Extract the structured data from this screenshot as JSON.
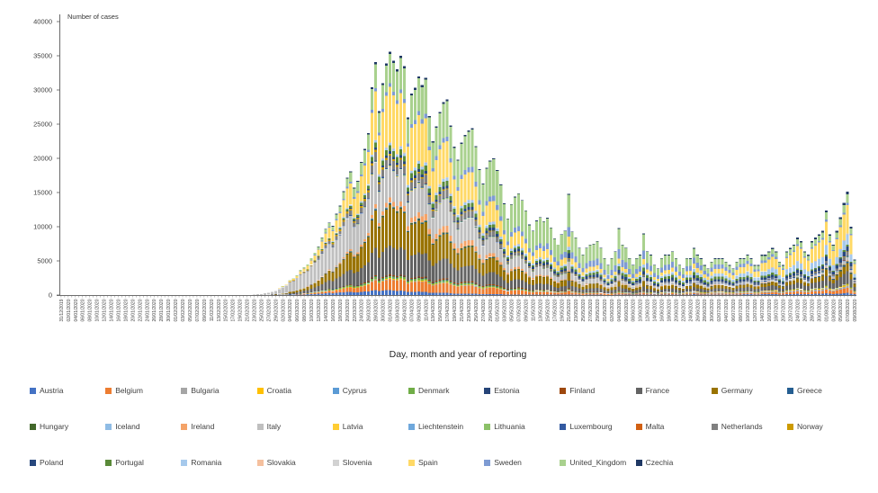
{
  "chart_data": {
    "type": "bar",
    "stacked": true,
    "title": "",
    "ylabel": "Number of cases",
    "xlabel": "Day, month and year of reporting",
    "ylim": [
      0,
      40000
    ],
    "y_ticks": [
      0,
      5000,
      10000,
      15000,
      20000,
      25000,
      30000,
      35000,
      40000
    ],
    "x_tick_label_every": 2,
    "grid": false,
    "legend_position": "bottom",
    "series": [
      {
        "name": "Austria",
        "color": "#4472C4"
      },
      {
        "name": "Belgium",
        "color": "#ED7D31"
      },
      {
        "name": "Bulgaria",
        "color": "#A5A5A5"
      },
      {
        "name": "Croatia",
        "color": "#FFC000"
      },
      {
        "name": "Cyprus",
        "color": "#5B9BD5"
      },
      {
        "name": "Denmark",
        "color": "#70AD47"
      },
      {
        "name": "Estonia",
        "color": "#264478"
      },
      {
        "name": "Finland",
        "color": "#9E480E"
      },
      {
        "name": "France",
        "color": "#636363"
      },
      {
        "name": "Germany",
        "color": "#997300"
      },
      {
        "name": "Greece",
        "color": "#255E91"
      },
      {
        "name": "Hungary",
        "color": "#43682B"
      },
      {
        "name": "Iceland",
        "color": "#8FBCE5"
      },
      {
        "name": "Ireland",
        "color": "#F4A368"
      },
      {
        "name": "Italy",
        "color": "#BFBFBF"
      },
      {
        "name": "Latvia",
        "color": "#FFCD33"
      },
      {
        "name": "Liechtenstein",
        "color": "#6FA8DC"
      },
      {
        "name": "Lithuania",
        "color": "#8CC168"
      },
      {
        "name": "Luxembourg",
        "color": "#335AA1"
      },
      {
        "name": "Malta",
        "color": "#D26012"
      },
      {
        "name": "Netherlands",
        "color": "#808080"
      },
      {
        "name": "Norway",
        "color": "#CC9A00"
      },
      {
        "name": "Poland",
        "color": "#27477D"
      },
      {
        "name": "Portugal",
        "color": "#5A8A39"
      },
      {
        "name": "Romania",
        "color": "#A6C9EC"
      },
      {
        "name": "Slovakia",
        "color": "#F5C09E"
      },
      {
        "name": "Slovenia",
        "color": "#D2D2D2"
      },
      {
        "name": "Spain",
        "color": "#FFD966"
      },
      {
        "name": "Sweden",
        "color": "#7E9BD3"
      },
      {
        "name": "United_Kingdom",
        "color": "#A9D18E"
      },
      {
        "name": "Czechia",
        "color": "#1F3864"
      }
    ],
    "dates": [
      "31/12/2019",
      "01/01/2020",
      "02/01/2020",
      "03/01/2020",
      "04/01/2020",
      "05/01/2020",
      "06/01/2020",
      "07/01/2020",
      "08/01/2020",
      "09/01/2020",
      "10/01/2020",
      "11/01/2020",
      "12/01/2020",
      "13/01/2020",
      "14/01/2020",
      "15/01/2020",
      "16/01/2020",
      "17/01/2020",
      "18/01/2020",
      "19/01/2020",
      "20/01/2020",
      "21/01/2020",
      "22/01/2020",
      "23/01/2020",
      "24/01/2020",
      "25/01/2020",
      "26/01/2020",
      "27/01/2020",
      "28/01/2020",
      "29/01/2020",
      "30/01/2020",
      "31/01/2020",
      "01/02/2020",
      "02/02/2020",
      "03/02/2020",
      "04/02/2020",
      "05/02/2020",
      "06/02/2020",
      "07/02/2020",
      "08/02/2020",
      "09/02/2020",
      "10/02/2020",
      "11/02/2020",
      "12/02/2020",
      "13/02/2020",
      "14/02/2020",
      "15/02/2020",
      "16/02/2020",
      "17/02/2020",
      "18/02/2020",
      "19/02/2020",
      "20/02/2020",
      "21/02/2020",
      "22/02/2020",
      "23/02/2020",
      "24/02/2020",
      "25/02/2020",
      "26/02/2020",
      "27/02/2020",
      "28/02/2020",
      "29/02/2020",
      "01/03/2020",
      "02/03/2020",
      "03/03/2020",
      "04/03/2020",
      "05/03/2020",
      "06/03/2020",
      "07/03/2020",
      "08/03/2020",
      "09/03/2020",
      "10/03/2020",
      "11/03/2020",
      "12/03/2020",
      "13/03/2020",
      "14/03/2020",
      "15/03/2020",
      "16/03/2020",
      "17/03/2020",
      "18/03/2020",
      "19/03/2020",
      "20/03/2020",
      "21/03/2020",
      "22/03/2020",
      "23/03/2020",
      "24/03/2020",
      "25/03/2020",
      "26/03/2020",
      "27/03/2020",
      "28/03/2020",
      "29/03/2020",
      "30/03/2020",
      "31/03/2020",
      "01/04/2020",
      "02/04/2020",
      "03/04/2020",
      "04/04/2020",
      "05/04/2020",
      "06/04/2020",
      "07/04/2020",
      "08/04/2020",
      "09/04/2020",
      "10/04/2020",
      "11/04/2020",
      "12/04/2020",
      "13/04/2020",
      "14/04/2020",
      "15/04/2020",
      "16/04/2020",
      "17/04/2020",
      "18/04/2020",
      "19/04/2020",
      "20/04/2020",
      "21/04/2020",
      "22/04/2020",
      "23/04/2020",
      "24/04/2020",
      "25/04/2020",
      "26/04/2020",
      "27/04/2020",
      "28/04/2020",
      "29/04/2020",
      "30/04/2020",
      "01/05/2020",
      "02/05/2020",
      "03/05/2020",
      "04/05/2020",
      "05/05/2020",
      "06/05/2020",
      "07/05/2020",
      "08/05/2020",
      "09/05/2020",
      "10/05/2020",
      "11/05/2020",
      "12/05/2020",
      "13/05/2020",
      "14/05/2020",
      "15/05/2020",
      "16/05/2020",
      "17/05/2020",
      "18/05/2020",
      "19/05/2020",
      "20/05/2020",
      "21/05/2020",
      "22/05/2020",
      "23/05/2020",
      "24/05/2020",
      "25/05/2020",
      "26/05/2020",
      "27/05/2020",
      "28/05/2020",
      "29/05/2020",
      "30/05/2020",
      "31/05/2020",
      "01/06/2020",
      "02/06/2020",
      "03/06/2020",
      "04/06/2020",
      "05/06/2020",
      "06/06/2020",
      "07/06/2020",
      "08/06/2020",
      "09/06/2020",
      "10/06/2020",
      "11/06/2020",
      "12/06/2020",
      "13/06/2020",
      "14/06/2020",
      "15/06/2020",
      "16/06/2020",
      "17/06/2020",
      "18/06/2020",
      "19/06/2020",
      "20/06/2020",
      "21/06/2020",
      "22/06/2020",
      "23/06/2020",
      "24/06/2020",
      "25/06/2020",
      "26/06/2020",
      "27/06/2020",
      "28/06/2020",
      "29/06/2020",
      "30/06/2020",
      "01/07/2020",
      "02/07/2020",
      "03/07/2020",
      "04/07/2020",
      "05/07/2020",
      "06/07/2020",
      "07/07/2020",
      "08/07/2020",
      "09/07/2020",
      "10/07/2020",
      "11/07/2020",
      "12/07/2020",
      "13/07/2020",
      "14/07/2020",
      "15/07/2020",
      "16/07/2020",
      "17/07/2020",
      "18/07/2020",
      "19/07/2020",
      "20/07/2020",
      "21/07/2020",
      "22/07/2020",
      "23/07/2020",
      "24/07/2020",
      "25/07/2020",
      "26/07/2020",
      "27/07/2020",
      "28/07/2020",
      "29/07/2020",
      "30/07/2020",
      "31/07/2020",
      "01/08/2020",
      "02/08/2020",
      "03/08/2020",
      "04/08/2020",
      "05/08/2020",
      "06/08/2020",
      "07/08/2020",
      "08/08/2020",
      "09/08/2020"
    ],
    "totals": [
      0,
      0,
      0,
      0,
      0,
      0,
      0,
      0,
      0,
      0,
      0,
      0,
      0,
      0,
      0,
      0,
      0,
      0,
      0,
      0,
      0,
      0,
      0,
      0,
      0,
      0,
      0,
      0,
      0,
      0,
      0,
      0,
      0,
      0,
      0,
      0,
      0,
      0,
      0,
      0,
      0,
      0,
      0,
      0,
      0,
      0,
      0,
      0,
      0,
      0,
      0,
      3,
      4,
      15,
      50,
      130,
      120,
      250,
      350,
      500,
      700,
      1000,
      1300,
      1600,
      2200,
      2500,
      2900,
      3700,
      4100,
      4500,
      5400,
      6200,
      7100,
      8400,
      9700,
      10600,
      10100,
      11900,
      13100,
      15200,
      17200,
      18100,
      15700,
      16700,
      19500,
      21400,
      23700,
      30400,
      34100,
      26900,
      31000,
      33900,
      35600,
      34300,
      33000,
      35000,
      33500,
      26000,
      29500,
      30300,
      32000,
      30700,
      31800,
      26200,
      22500,
      24700,
      26800,
      28200,
      28600,
      24800,
      21700,
      19800,
      22300,
      23400,
      24100,
      24400,
      21800,
      18400,
      16300,
      18600,
      19700,
      20000,
      18300,
      16200,
      13400,
      11200,
      13300,
      14400,
      14900,
      13900,
      12400,
      10300,
      9400,
      10900,
      11400,
      10800,
      11300,
      9900,
      8300,
      7400,
      8900,
      9400,
      14800,
      9300,
      8400,
      6900,
      5900,
      6900,
      7400,
      7500,
      7900,
      6900,
      5400,
      4400,
      5400,
      6400,
      9800,
      7400,
      6900,
      5400,
      4400,
      5400,
      5900,
      9000,
      6400,
      5900,
      4400,
      3900,
      5400,
      5900,
      5900,
      6400,
      5400,
      4400,
      3900,
      5400,
      5400,
      6900,
      5900,
      5400,
      4400,
      3900,
      4900,
      5400,
      5400,
      5400,
      4900,
      4400,
      3900,
      4900,
      5400,
      5400,
      5900,
      5400,
      4400,
      4400,
      5900,
      5900,
      6400,
      6900,
      6400,
      4900,
      4400,
      6400,
      6900,
      7400,
      8400,
      7900,
      6400,
      5900,
      7900,
      8400,
      8900,
      9400,
      12400,
      8900,
      7400,
      9400,
      11400,
      13500,
      15100,
      10000,
      5200
    ],
    "composition_keyframes": [
      {
        "day": 0,
        "weights": [
          1,
          0.2,
          0,
          0.3,
          0,
          0.2,
          0,
          0.1,
          6,
          3,
          0.5,
          0,
          0.1,
          0,
          80,
          0,
          0,
          0,
          0,
          0,
          0.3,
          0.5,
          0,
          0,
          0.2,
          0,
          0,
          4,
          0.5,
          2,
          0
        ]
      },
      {
        "day": 57,
        "weights": [
          1,
          0.2,
          0,
          0.3,
          0,
          0.2,
          0,
          0.1,
          6,
          3,
          0.5,
          0,
          0.1,
          0,
          80,
          0,
          0,
          0,
          0,
          0,
          0.3,
          0.5,
          0,
          0,
          0.2,
          0,
          0,
          4,
          0.5,
          2,
          0
        ]
      },
      {
        "day": 75,
        "weights": [
          3,
          3,
          0.2,
          0.2,
          0.1,
          1.5,
          0.3,
          0.4,
          12,
          13,
          0.5,
          0.2,
          0.3,
          1,
          35,
          0.1,
          0.05,
          0.1,
          0.5,
          0.05,
          4,
          2,
          0.5,
          1,
          0.5,
          0.1,
          0.5,
          14,
          1.5,
          5,
          0.8
        ]
      },
      {
        "day": 92,
        "weights": [
          2,
          4.5,
          0.2,
          0.3,
          0.1,
          0.8,
          0.2,
          0.4,
          12,
          17,
          0.3,
          0.3,
          0.3,
          2,
          13,
          0.1,
          0.03,
          0.2,
          0.5,
          0.05,
          3.5,
          0.8,
          1,
          2.5,
          1,
          0.1,
          0.2,
          23,
          1.5,
          12,
          1
        ]
      },
      {
        "day": 110,
        "weights": [
          1,
          5,
          0.3,
          0.3,
          0.1,
          1,
          0.3,
          0.6,
          10,
          12,
          0.3,
          0.5,
          0.1,
          3.5,
          14,
          0.1,
          0.02,
          0.3,
          0.3,
          0.1,
          4,
          0.6,
          1.5,
          2.5,
          1.5,
          0.2,
          0.1,
          18,
          2.5,
          19,
          0.8
        ]
      },
      {
        "day": 130,
        "weights": [
          0.5,
          4,
          0.5,
          0.2,
          0.1,
          1,
          0.2,
          0.8,
          8,
          9,
          0.2,
          0.5,
          0.02,
          2,
          10,
          0.1,
          0.01,
          0.3,
          0.2,
          0.1,
          3,
          0.5,
          3,
          2,
          2.5,
          0.2,
          0.1,
          12,
          5,
          33,
          0.7
        ]
      },
      {
        "day": 155,
        "weights": [
          0.6,
          2.5,
          0.8,
          0.1,
          0.1,
          0.7,
          0.2,
          0.5,
          7,
          7,
          0.3,
          0.3,
          0.02,
          1,
          6,
          0.1,
          0.01,
          0.3,
          0.2,
          0.05,
          2.5,
          0.4,
          6,
          5,
          3.5,
          0.2,
          0.1,
          7,
          14,
          30,
          1
        ]
      },
      {
        "day": 183,
        "weights": [
          1.5,
          2,
          2.5,
          1,
          0.1,
          0.5,
          0.1,
          0.2,
          8,
          7,
          0.5,
          0.3,
          0.05,
          0.5,
          4,
          0.1,
          0.01,
          0.3,
          1,
          0.05,
          1.5,
          0.3,
          6,
          6,
          7,
          0.3,
          0.3,
          10,
          11,
          13,
          2
        ]
      },
      {
        "day": 205,
        "weights": [
          2,
          4,
          3,
          1,
          0.2,
          0.7,
          0.1,
          0.2,
          10,
          7,
          0.8,
          0.3,
          0.1,
          0.5,
          3,
          0.1,
          0.01,
          0.3,
          1.5,
          0.1,
          2,
          0.3,
          5,
          3,
          12,
          0.4,
          0.4,
          25,
          3,
          9,
          2.5
        ]
      },
      {
        "day": 222,
        "weights": [
          2,
          5,
          2,
          1,
          0.2,
          0.7,
          0.1,
          0.3,
          12,
          8,
          1.5,
          0.4,
          0.2,
          0.6,
          3,
          0.1,
          0.01,
          0.3,
          0.8,
          0.3,
          4,
          0.3,
          5,
          1.5,
          10,
          0.4,
          0.3,
          28,
          2,
          8,
          2.5
        ]
      }
    ]
  }
}
